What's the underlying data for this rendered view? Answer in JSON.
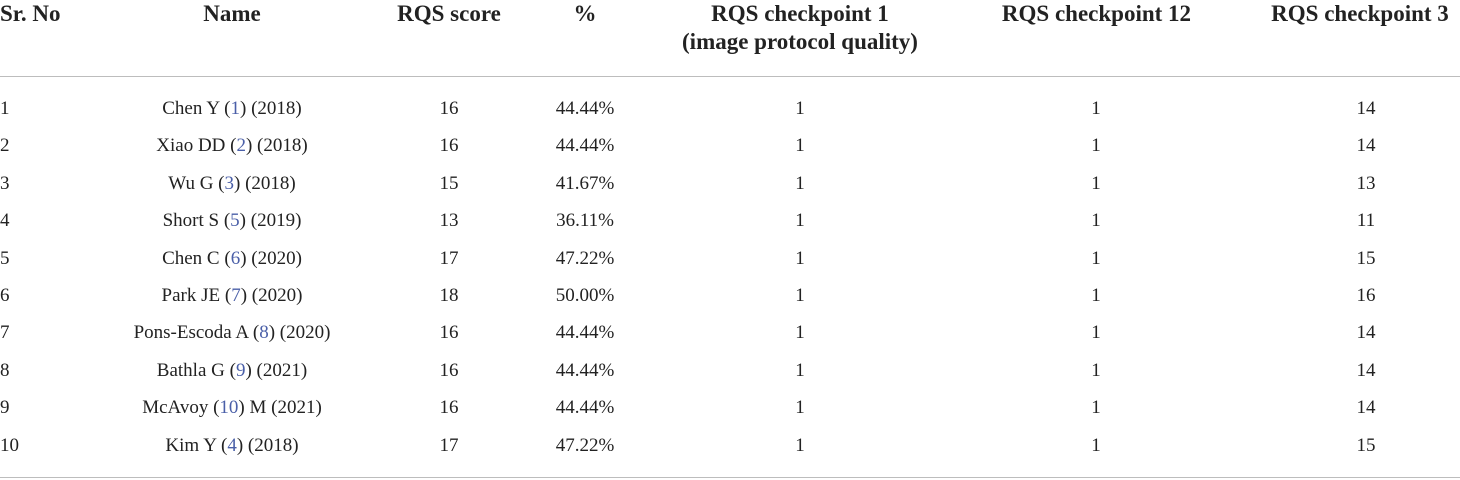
{
  "table": {
    "headers": {
      "sr_no": "Sr. No",
      "name": "Name",
      "rqs_score": "RQS score",
      "percent": "%",
      "cp1_line1": "RQS checkpoint 1",
      "cp1_line2": "(image protocol quality)",
      "cp12": "RQS checkpoint 12",
      "cp3": "RQS checkpoint 3"
    },
    "rows": [
      {
        "sr": "1",
        "name_before": "Chen Y (",
        "ref": "1",
        "name_after": ") (2018)",
        "score": "16",
        "pct": "44.44%",
        "cp1": "1",
        "cp12": "1",
        "cp3": "14"
      },
      {
        "sr": "2",
        "name_before": "Xiao DD (",
        "ref": "2",
        "name_after": ") (2018)",
        "score": "16",
        "pct": "44.44%",
        "cp1": "1",
        "cp12": "1",
        "cp3": "14"
      },
      {
        "sr": "3",
        "name_before": "Wu G (",
        "ref": "3",
        "name_after": ") (2018)",
        "score": "15",
        "pct": "41.67%",
        "cp1": "1",
        "cp12": "1",
        "cp3": "13"
      },
      {
        "sr": "4",
        "name_before": "Short S (",
        "ref": "5",
        "name_after": ") (2019)",
        "score": "13",
        "pct": "36.11%",
        "cp1": "1",
        "cp12": "1",
        "cp3": "11"
      },
      {
        "sr": "5",
        "name_before": "Chen C (",
        "ref": "6",
        "name_after": ") (2020)",
        "score": "17",
        "pct": "47.22%",
        "cp1": "1",
        "cp12": "1",
        "cp3": "15"
      },
      {
        "sr": "6",
        "name_before": "Park JE (",
        "ref": "7",
        "name_after": ") (2020)",
        "score": "18",
        "pct": "50.00%",
        "cp1": "1",
        "cp12": "1",
        "cp3": "16"
      },
      {
        "sr": "7",
        "name_before": "Pons-Escoda A (",
        "ref": "8",
        "name_after": ") (2020)",
        "score": "16",
        "pct": "44.44%",
        "cp1": "1",
        "cp12": "1",
        "cp3": "14"
      },
      {
        "sr": "8",
        "name_before": "Bathla G (",
        "ref": "9",
        "name_after": ") (2021)",
        "score": "16",
        "pct": "44.44%",
        "cp1": "1",
        "cp12": "1",
        "cp3": "14"
      },
      {
        "sr": "9",
        "name_before": "McAvoy (",
        "ref": "10",
        "name_after": ") M (2021)",
        "score": "16",
        "pct": "44.44%",
        "cp1": "1",
        "cp12": "1",
        "cp3": "14"
      },
      {
        "sr": "10",
        "name_before": "Kim Y (",
        "ref": "4",
        "name_after": ") (2018)",
        "score": "17",
        "pct": "47.22%",
        "cp1": "1",
        "cp12": "1",
        "cp3": "15"
      }
    ]
  },
  "colors": {
    "text": "#222222",
    "reference_link": "#4a5fa8",
    "rule": "#bdbdbd"
  }
}
